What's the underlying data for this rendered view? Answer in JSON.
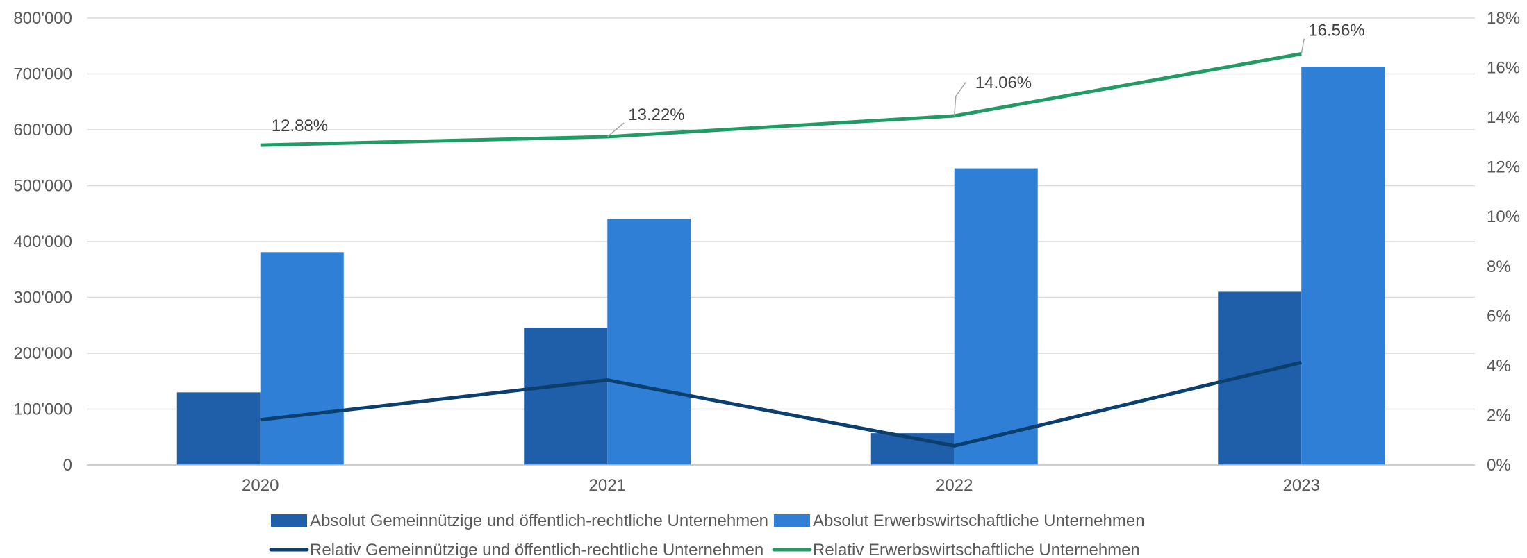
{
  "chart_data": {
    "type": "bar",
    "categories": [
      "2020",
      "2021",
      "2022",
      "2023"
    ],
    "bar_series": [
      {
        "name": "Absolut Gemeinnützige und öffentlich-rechtliche Unternehmen",
        "values": [
          130000,
          246000,
          57000,
          310000
        ],
        "color": "#1f5ea8"
      },
      {
        "name": "Absolut Erwerbswirtschaftliche Unternehmen",
        "values": [
          381000,
          441000,
          531000,
          713000
        ],
        "color": "#2e7fd5"
      }
    ],
    "line_series": [
      {
        "name": "Relativ Gemeinnützige und öffentlich-rechtliche Unternehmen",
        "values": [
          1.82,
          3.42,
          0.77,
          4.13
        ],
        "color": "#0b3f6d",
        "axis": "right"
      },
      {
        "name": "Relativ Erwerbswirtschaftliche Unternehmen",
        "values": [
          12.88,
          13.22,
          14.06,
          16.56
        ],
        "color": "#219b63",
        "axis": "right",
        "labels": [
          "12.88%",
          "13.22%",
          "14.06%",
          "16.56%"
        ]
      }
    ],
    "y_left": {
      "min": 0,
      "max": 800000,
      "ticks": [
        "0",
        "100'000",
        "200'000",
        "300'000",
        "400'000",
        "500'000",
        "600'000",
        "700'000",
        "800'000"
      ]
    },
    "y_right": {
      "min": 0,
      "max": 18,
      "ticks": [
        "0%",
        "2%",
        "4%",
        "6%",
        "8%",
        "10%",
        "12%",
        "14%",
        "16%",
        "18%"
      ]
    },
    "grid": true,
    "legend_position": "bottom"
  }
}
